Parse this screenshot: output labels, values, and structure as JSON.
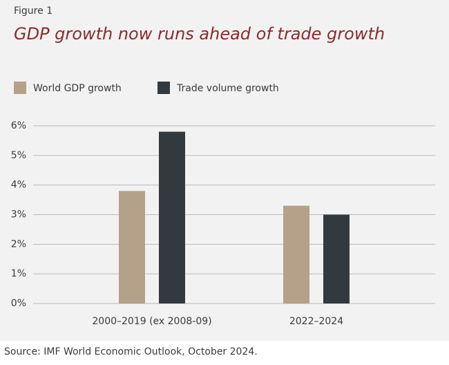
{
  "chart_data": {
    "type": "bar",
    "figure_label": "Figure 1",
    "title": "GDP growth now runs ahead of trade growth",
    "source": "Source: IMF World Economic Outlook, October 2024.",
    "categories": [
      "2000–2019 (ex 2008-09)",
      "2022–2024"
    ],
    "series": [
      {
        "name": "World GDP growth",
        "color": "#b5a08a",
        "values": [
          3.8,
          3.3
        ]
      },
      {
        "name": "Trade volume growth",
        "color": "#323a3f",
        "values": [
          5.8,
          3.0
        ]
      }
    ],
    "ylim": [
      0,
      6
    ],
    "yticks": [
      {
        "value": 0,
        "label": "0%"
      },
      {
        "value": 1,
        "label": "1%"
      },
      {
        "value": 2,
        "label": "2%"
      },
      {
        "value": 3,
        "label": "3%"
      },
      {
        "value": 4,
        "label": "4%"
      },
      {
        "value": 5,
        "label": "5%"
      },
      {
        "value": 6,
        "label": "6%"
      }
    ],
    "grid": true
  }
}
